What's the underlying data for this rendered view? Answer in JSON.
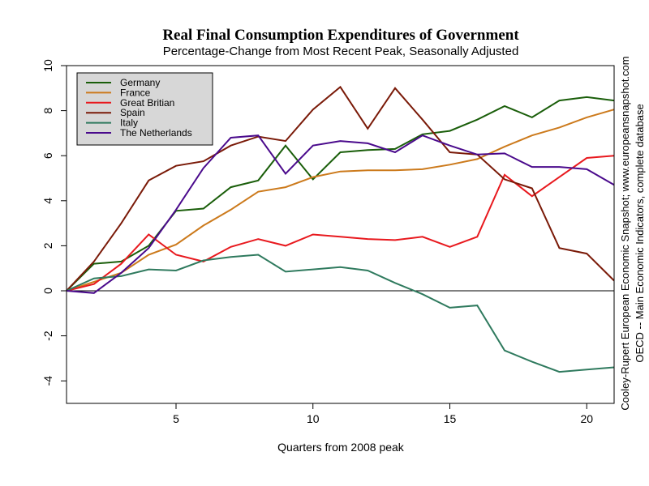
{
  "chart_data": {
    "type": "line",
    "title": "Real Final Consumption Expenditures of Government",
    "subtitle": "Percentage-Change from Most Recent Peak, Seasonally Adjusted",
    "xlabel": "Quarters from 2008 peak",
    "ylabel": "",
    "xlim": [
      1,
      21
    ],
    "ylim": [
      -5,
      10
    ],
    "x_ticks": [
      5,
      10,
      15,
      20
    ],
    "y_ticks": [
      -4,
      -2,
      0,
      2,
      4,
      6,
      8,
      10
    ],
    "zero_line": true,
    "grid": false,
    "legend_position": "top-left",
    "x": [
      1,
      2,
      3,
      4,
      5,
      6,
      7,
      8,
      9,
      10,
      11,
      12,
      13,
      14,
      15,
      16,
      17,
      18,
      19,
      20,
      21
    ],
    "series": [
      {
        "name": "Germany",
        "color": "#1a5e0a",
        "values": [
          0,
          1.2,
          1.3,
          2.0,
          3.55,
          3.65,
          4.6,
          4.9,
          6.45,
          4.95,
          6.15,
          6.25,
          6.3,
          6.95,
          7.1,
          7.6,
          8.2,
          7.7,
          8.45,
          8.6,
          8.45
        ]
      },
      {
        "name": "France",
        "color": "#cc7a1c",
        "values": [
          0,
          0.4,
          0.8,
          1.6,
          2.05,
          2.9,
          3.6,
          4.4,
          4.6,
          5.05,
          5.3,
          5.35,
          5.35,
          5.4,
          5.6,
          5.85,
          6.4,
          6.9,
          7.25,
          7.7,
          8.05
        ]
      },
      {
        "name": "Great Britian",
        "color": "#e8191e",
        "values": [
          0,
          0.3,
          1.2,
          2.5,
          1.6,
          1.3,
          1.95,
          2.3,
          2.0,
          2.5,
          2.4,
          2.3,
          2.25,
          2.4,
          1.95,
          2.4,
          5.15,
          4.2,
          5.05,
          5.9,
          6.0
        ]
      },
      {
        "name": "Spain",
        "color": "#7a1a08",
        "values": [
          0,
          1.3,
          3.0,
          4.9,
          5.55,
          5.75,
          6.45,
          6.85,
          6.65,
          8.05,
          9.05,
          7.2,
          9.0,
          7.6,
          6.15,
          6.05,
          4.95,
          4.55,
          1.9,
          1.65,
          0.45
        ]
      },
      {
        "name": "Italy",
        "color": "#2f7a5e",
        "values": [
          0,
          0.55,
          0.65,
          0.95,
          0.9,
          1.35,
          1.5,
          1.6,
          0.85,
          0.95,
          1.05,
          0.9,
          0.35,
          -0.15,
          -0.75,
          -0.65,
          -2.65,
          -3.15,
          -3.6,
          -3.5,
          -3.4
        ]
      },
      {
        "name": "The Netherlands",
        "color": "#4a0a8c",
        "values": [
          0,
          -0.1,
          0.8,
          1.9,
          3.6,
          5.45,
          6.8,
          6.9,
          5.2,
          6.45,
          6.65,
          6.55,
          6.15,
          6.9,
          6.45,
          6.05,
          6.1,
          5.5,
          5.5,
          5.4,
          4.7
        ]
      }
    ],
    "side_notes": [
      "Cooley-Rupert European Economic Snapshot; www.europeansnapshot.com",
      "OECD -- Main Economic Indicators, complete database"
    ]
  }
}
